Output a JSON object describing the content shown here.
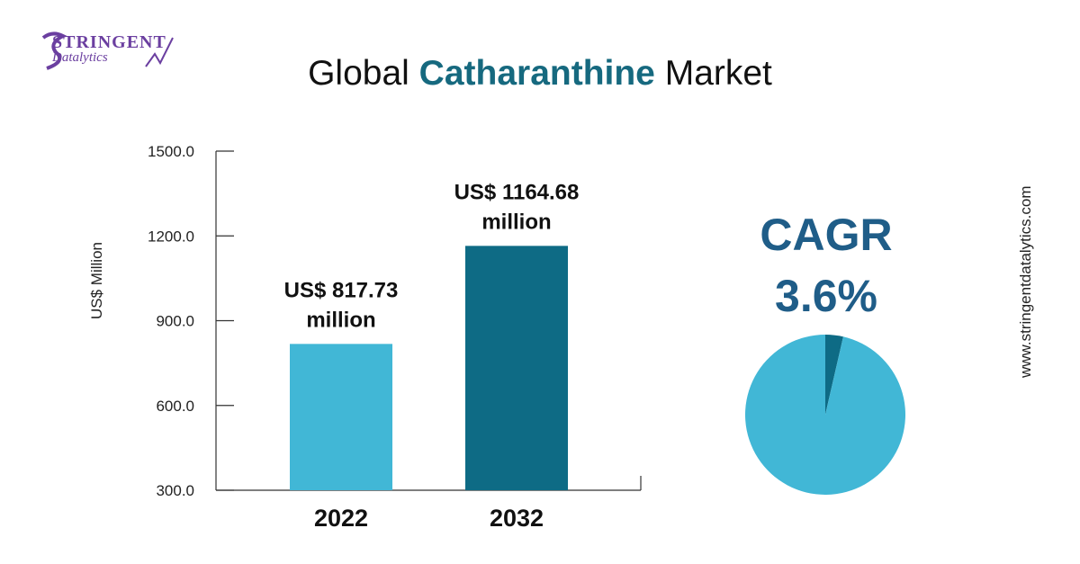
{
  "brand": {
    "name_top": "STRINGENT",
    "name_bottom": "Datalytics",
    "colors": {
      "primary": "#6b3fa0"
    }
  },
  "title": {
    "prefix": "Global",
    "highlight": "Catharanthine",
    "suffix": "Market"
  },
  "website": "www.stringentdatalytics.com",
  "cagr": {
    "label": "CAGR",
    "value": "3.6%",
    "rate": 3.6
  },
  "chart_data": {
    "type": "bar",
    "categories": [
      "2022",
      "2032"
    ],
    "values": [
      817.73,
      1164.68
    ],
    "value_labels": [
      [
        "US$ 817.73",
        "million"
      ],
      [
        "US$ 1164.68",
        "million"
      ]
    ],
    "colors": [
      "#41b7d6",
      "#0e6b85"
    ],
    "ylabel": "US$ Million",
    "xlabel": "",
    "yticks": [
      "300.0",
      "600.0",
      "900.0",
      "1200.0",
      "1500.0"
    ],
    "ytick_values": [
      300,
      600,
      900,
      1200,
      1500
    ],
    "ylim": [
      300,
      1500
    ],
    "grid": false
  },
  "pie_data": {
    "type": "pie",
    "slices": [
      {
        "value": 0.036,
        "color": "#0e6b85"
      },
      {
        "value": 0.964,
        "color": "#41b7d6"
      }
    ]
  }
}
